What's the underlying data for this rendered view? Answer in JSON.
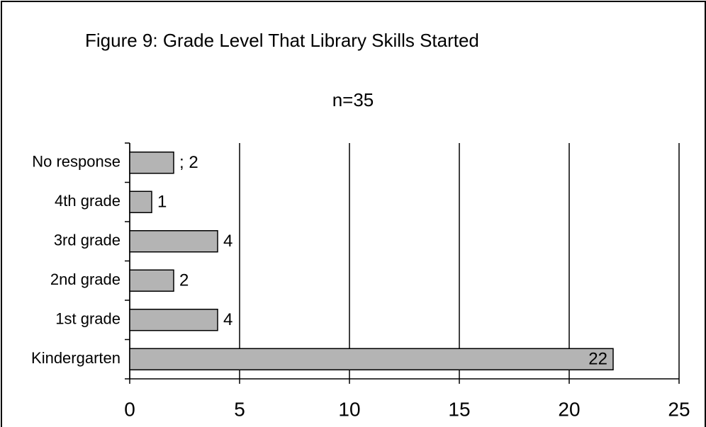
{
  "chart_data": {
    "type": "bar",
    "orientation": "horizontal",
    "title": "Figure 9: Grade Level That Library Skills Started",
    "subtitle": "n=35",
    "categories": [
      "No response",
      "4th grade",
      "3rd grade",
      "2nd grade",
      "1st grade",
      "Kindergarten"
    ],
    "values": [
      2,
      1,
      4,
      2,
      4,
      22
    ],
    "value_labels": [
      "; 2",
      "1",
      "4",
      "2",
      "4",
      "22"
    ],
    "color": "#b4b4b4",
    "xlim": [
      0,
      25
    ],
    "xticks": [
      0,
      5,
      10,
      15,
      20,
      25
    ],
    "grid": true
  }
}
